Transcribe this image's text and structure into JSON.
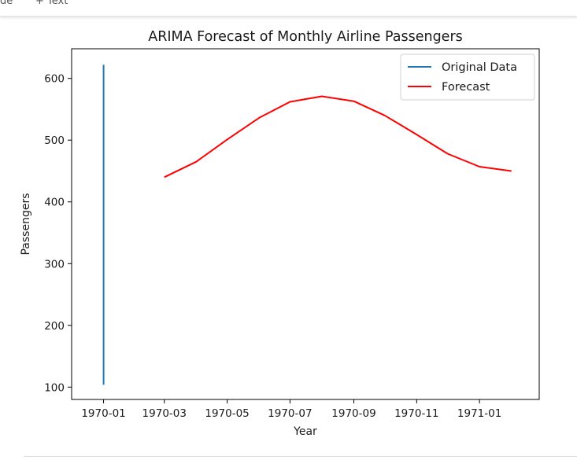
{
  "toolbar": {
    "left_fragment": "de",
    "add_text": "+ Text"
  },
  "chart_data": {
    "type": "line",
    "title": "ARIMA Forecast of Monthly Airline Passengers",
    "xlabel": "Year",
    "ylabel": "Passengers",
    "ylim": [
      80,
      648
    ],
    "xlim": [
      "1969-12-01",
      "1971-02-28"
    ],
    "x_ticks": [
      "1970-01",
      "1970-03",
      "1970-05",
      "1970-07",
      "1970-09",
      "1970-11",
      "1971-01"
    ],
    "y_ticks": [
      100,
      200,
      300,
      400,
      500,
      600
    ],
    "legend": {
      "placement": "top-right"
    },
    "series": [
      {
        "name": "Original Data",
        "color": "#1f77b4",
        "x": [
          "1970-01-01",
          "1970-01-01"
        ],
        "values": [
          104,
          622
        ]
      },
      {
        "name": "Forecast",
        "color": "#ff0000",
        "x": [
          "1970-03-01",
          "1970-04-01",
          "1970-05-01",
          "1970-06-01",
          "1970-07-01",
          "1970-08-01",
          "1970-09-01",
          "1970-10-01",
          "1970-11-01",
          "1970-12-01",
          "1971-01-01",
          "1971-02-01"
        ],
        "values": [
          440,
          465,
          501,
          536,
          562,
          571,
          563,
          540,
          509,
          478,
          457,
          450
        ]
      }
    ]
  }
}
